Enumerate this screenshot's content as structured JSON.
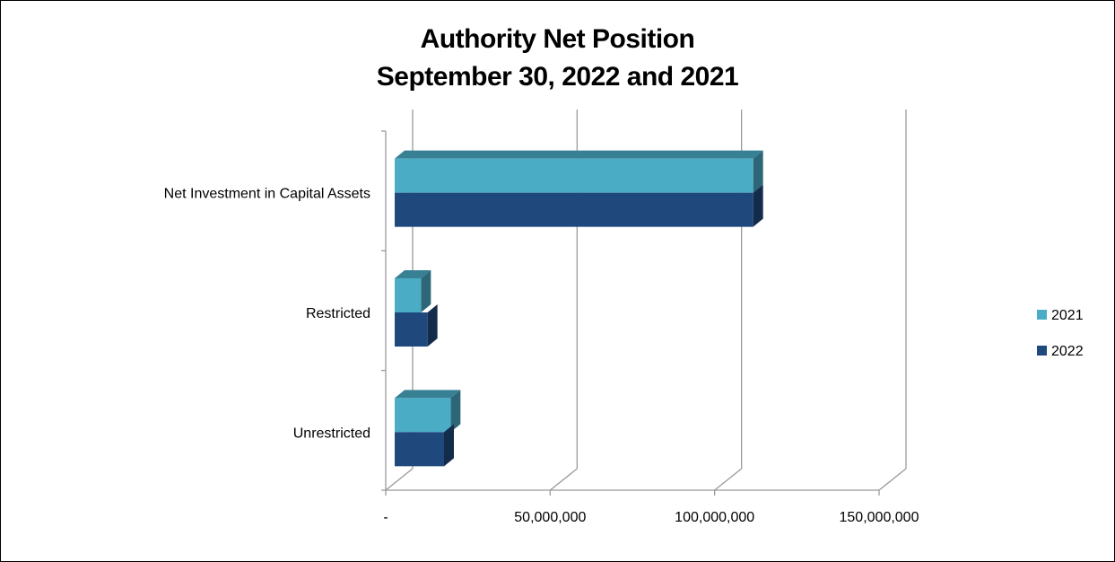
{
  "chart_data": {
    "type": "bar",
    "orientation": "horizontal",
    "title_lines": [
      "Authority Net Position",
      "September 30, 2022 and 2021"
    ],
    "categories": [
      "Net Investment in Capital Assets",
      "Restricted",
      "Unrestricted"
    ],
    "series": [
      {
        "name": "2021",
        "color": "#4bacc6",
        "values": [
          109000000,
          8000000,
          17000000
        ]
      },
      {
        "name": "2022",
        "color": "#1f497d",
        "values": [
          109000000,
          10000000,
          15000000
        ]
      }
    ],
    "x_ticks": [
      {
        "value": 0,
        "label": "-"
      },
      {
        "value": 50000000,
        "label": "50,000,000"
      },
      {
        "value": 100000000,
        "label": "100,000,000"
      },
      {
        "value": 150000000,
        "label": "150,000,000"
      }
    ],
    "xlim": [
      0,
      150000000
    ],
    "grid": true,
    "legend_position": "right",
    "style": "3d"
  }
}
